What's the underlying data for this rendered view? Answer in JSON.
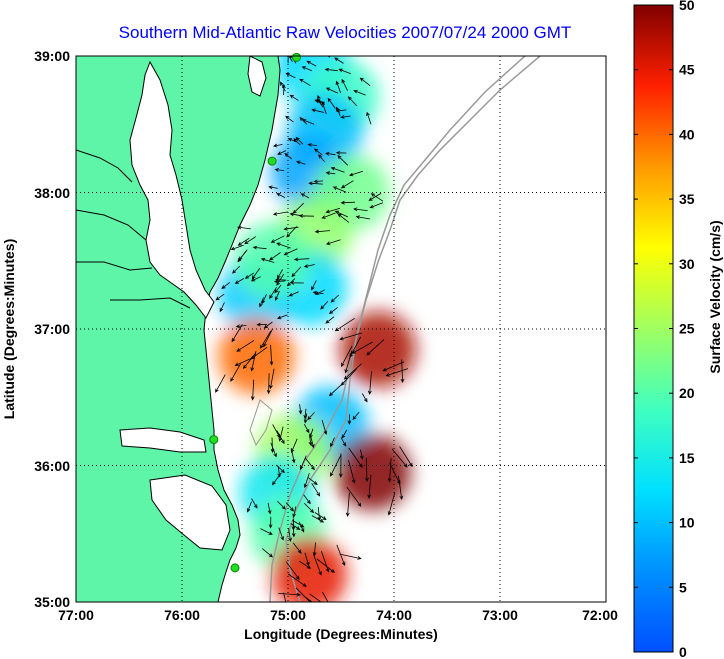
{
  "title": "Southern Mid-Atlantic Raw Velocities 2007/07/24 2000 GMT",
  "axes": {
    "xlabel": "Longitude (Degrees:Minutes)",
    "ylabel": "Latitude (Degrees:Minutes)",
    "x_ticks": [
      "77:00",
      "76:00",
      "75:00",
      "74:00",
      "73:00",
      "72:00"
    ],
    "y_ticks": [
      "39:00",
      "38:00",
      "37:00",
      "36:00",
      "35:00"
    ],
    "x_range_deg_west": [
      77,
      72
    ],
    "y_range_deg_north": [
      35,
      39
    ],
    "grid": "dotted"
  },
  "colorbar": {
    "label": "Surface Velocity (cm/s)",
    "ticks": [
      "50",
      "45",
      "40",
      "35",
      "30",
      "25",
      "20",
      "15",
      "10",
      "5",
      "0"
    ],
    "range": [
      0,
      50
    ],
    "colormap": "jet"
  },
  "colors": {
    "land": "#5ff5a8",
    "coast": "#000000",
    "bathymetry": "#999999",
    "site_marker": "#22dd22",
    "title": "#0000ff"
  },
  "radar_sites": [
    {
      "lon": 74.92,
      "lat": 38.99
    },
    {
      "lon": 75.15,
      "lat": 38.23
    },
    {
      "lon": 75.7,
      "lat": 36.19
    },
    {
      "lon": 75.5,
      "lat": 35.25
    }
  ],
  "velocity_fields": [
    {
      "lon": 74.77,
      "lat": 38.92,
      "speed": 12
    },
    {
      "lon": 74.5,
      "lat": 38.7,
      "speed": 18
    },
    {
      "lon": 74.65,
      "lat": 38.45,
      "speed": 10
    },
    {
      "lon": 74.8,
      "lat": 38.15,
      "speed": 8
    },
    {
      "lon": 74.4,
      "lat": 38.0,
      "speed": 22
    },
    {
      "lon": 74.75,
      "lat": 37.7,
      "speed": 24
    },
    {
      "lon": 74.8,
      "lat": 37.3,
      "speed": 12
    },
    {
      "lon": 75.3,
      "lat": 37.25,
      "speed": 11
    },
    {
      "lon": 75.15,
      "lat": 37.5,
      "speed": 20
    },
    {
      "lon": 75.3,
      "lat": 36.8,
      "speed": 40
    },
    {
      "lon": 74.15,
      "lat": 36.85,
      "speed": 48
    },
    {
      "lon": 74.6,
      "lat": 36.3,
      "speed": 10
    },
    {
      "lon": 74.95,
      "lat": 36.1,
      "speed": 25
    },
    {
      "lon": 75.1,
      "lat": 35.8,
      "speed": 14
    },
    {
      "lon": 74.2,
      "lat": 35.95,
      "speed": 50
    },
    {
      "lon": 75.0,
      "lat": 35.5,
      "speed": 20
    },
    {
      "lon": 74.8,
      "lat": 35.2,
      "speed": 45
    }
  ]
}
